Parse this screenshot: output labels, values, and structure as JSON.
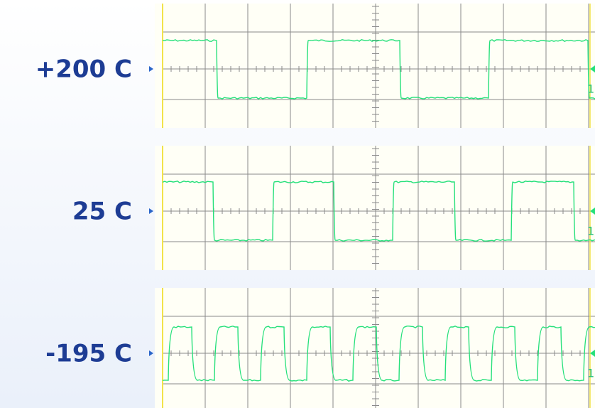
{
  "panels": [
    {
      "label": "+200 C",
      "channel": "1"
    },
    {
      "label": "25 C",
      "channel": "1"
    },
    {
      "label": "-195 C",
      "channel": "1"
    }
  ]
}
